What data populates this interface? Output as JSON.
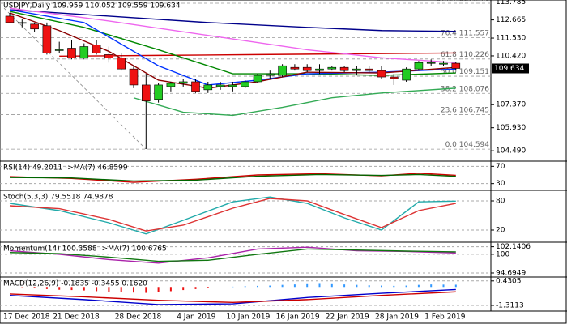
{
  "chart_data": [
    {
      "type": "candlestick",
      "title": "USDJPY,Daily  109.959 110.052 109.559 109.634",
      "categories": [
        "17 Dec 2018",
        null,
        null,
        null,
        "21 Dec 2018",
        null,
        null,
        null,
        null,
        "28 Dec 2018",
        null,
        null,
        null,
        null,
        "4 Jan 2019",
        null,
        null,
        null,
        "10 Jan 2019",
        null,
        null,
        null,
        "16 Jan 2019",
        null,
        null,
        null,
        "22 Jan 2019",
        null,
        null,
        null,
        "28 Jan 2019",
        null,
        null,
        null,
        "1 Feb 2019",
        null,
        null
      ],
      "open": [
        112.9,
        112.5,
        112.4,
        112.3,
        110.8,
        110.9,
        110.3,
        111.1,
        110.5,
        110.3,
        109.6,
        108.6,
        107.7,
        108.5,
        108.7,
        108.8,
        108.3,
        108.5,
        108.5,
        108.5,
        108.8,
        109.2,
        109.2,
        109.7,
        109.7,
        109.5,
        109.6,
        109.7,
        109.5,
        109.6,
        109.5,
        109.1,
        108.9,
        109.6,
        110.0,
        109.9,
        109.959
      ],
      "high": [
        113.1,
        112.7,
        112.5,
        112.5,
        111.3,
        111.4,
        111.2,
        111.4,
        111.0,
        110.6,
        109.8,
        109.3,
        108.7,
        108.8,
        109.0,
        109.0,
        108.8,
        108.8,
        108.8,
        108.9,
        109.3,
        109.5,
        109.9,
        109.9,
        109.9,
        109.9,
        109.8,
        109.8,
        109.8,
        109.8,
        109.8,
        109.3,
        109.7,
        110.1,
        110.2,
        110.1,
        110.052
      ],
      "low": [
        112.5,
        112.2,
        111.9,
        110.5,
        110.6,
        110.2,
        110.2,
        110.5,
        110.0,
        109.5,
        108.4,
        104.6,
        107.5,
        108.2,
        108.5,
        108.1,
        108.1,
        108.3,
        108.2,
        108.4,
        108.7,
        109.0,
        109.1,
        109.5,
        109.4,
        109.3,
        109.5,
        109.4,
        109.2,
        109.4,
        109.0,
        108.6,
        108.8,
        109.5,
        109.8,
        109.8,
        109.559
      ],
      "close": [
        112.5,
        112.5,
        112.1,
        110.6,
        110.8,
        110.3,
        111.0,
        110.6,
        110.3,
        109.6,
        108.6,
        107.6,
        108.6,
        108.7,
        108.8,
        108.2,
        108.6,
        108.6,
        108.6,
        108.8,
        109.2,
        109.3,
        109.8,
        109.6,
        109.5,
        109.6,
        109.7,
        109.5,
        109.6,
        109.5,
        109.1,
        109.0,
        109.6,
        110.0,
        110.0,
        109.96,
        109.634
      ],
      "up_color": "#22cc22",
      "down_color": "#ee1111",
      "ylim": [
        103.89,
        113.91
      ],
      "yticks": [
        113.785,
        112.665,
        {
          "value": 111.53,
          "label": "111.530"
        },
        {
          "value": 110.42,
          "label": "110.420"
        },
        {
          "value": 107.37,
          "label": "107.370"
        },
        {
          "value": 105.93,
          "label": "105.930"
        },
        {
          "value": 104.49,
          "label": "104.490"
        }
      ],
      "fib": [
        {
          "level": "100.0",
          "price": 113.708
        },
        {
          "level": "76.4",
          "price": 111.557
        },
        {
          "level": "61.8",
          "price": 110.226
        },
        {
          "level": "50.0",
          "price": 109.151
        },
        {
          "level": "38.2",
          "price": 108.076
        },
        {
          "level": "23.6",
          "price": 106.745
        },
        {
          "level": "0.0",
          "price": 104.594
        }
      ],
      "overlays": [
        {
          "color": "#00008b",
          "x": [
            0,
            8,
            16,
            24,
            30,
            36
          ],
          "values": [
            113.3,
            112.9,
            112.5,
            112.2,
            112.0,
            111.95
          ]
        },
        {
          "color": "#cc0000",
          "x": [
            4,
            12,
            20,
            28,
            36
          ],
          "values": [
            110.4,
            110.45,
            110.5,
            110.55,
            110.6
          ]
        },
        {
          "color": "#ee66ee",
          "x": [
            0,
            8,
            16,
            24,
            30,
            36
          ],
          "values": [
            113.4,
            112.6,
            111.7,
            110.8,
            110.3,
            110.0
          ]
        },
        {
          "color": "#008800",
          "x": [
            0,
            6,
            12,
            18,
            24,
            30,
            36
          ],
          "values": [
            113.2,
            112.2,
            110.8,
            109.3,
            109.3,
            109.2,
            109.35
          ]
        },
        {
          "color": "#0033ff",
          "x": [
            0,
            6,
            12,
            16,
            20,
            24,
            30,
            36
          ],
          "values": [
            113.3,
            112.5,
            109.8,
            108.6,
            108.9,
            109.3,
            109.4,
            109.6
          ]
        },
        {
          "color": "#8b0000",
          "x": [
            0,
            4,
            8,
            12,
            16,
            20,
            24,
            30,
            36
          ],
          "values": [
            113.1,
            112.0,
            110.7,
            108.9,
            108.4,
            108.8,
            109.4,
            109.35,
            109.7
          ]
        },
        {
          "color": "#33aa55",
          "x": [
            10,
            14,
            18,
            22,
            26,
            30,
            36
          ],
          "values": [
            107.8,
            106.9,
            106.7,
            107.2,
            107.8,
            108.1,
            108.4
          ]
        }
      ]
    },
    {
      "type": "line",
      "title": "RSI(14) 49.2011 ->MA(7) 46.8599",
      "ylim": [
        20,
        80
      ],
      "yticks": [
        70,
        30
      ],
      "series": [
        {
          "color": "#cc0000",
          "x": [
            0,
            5,
            10,
            15,
            20,
            25,
            30,
            33,
            36
          ],
          "values": [
            46,
            42,
            33,
            40,
            50,
            53,
            48,
            54,
            49.2011
          ]
        },
        {
          "color": "#006600",
          "x": [
            0,
            5,
            10,
            15,
            20,
            25,
            30,
            33,
            36
          ],
          "values": [
            44,
            43,
            36,
            38,
            47,
            51,
            49,
            51,
            46.8599
          ]
        }
      ]
    },
    {
      "type": "line",
      "title": "Stoch(5,3,3) 79.5518 74.9878",
      "ylim": [
        0,
        100
      ],
      "yticks": [
        80,
        20
      ],
      "series": [
        {
          "color": "#22aaaa",
          "x": [
            0,
            4,
            8,
            11,
            14,
            18,
            21,
            24,
            27,
            30,
            33,
            36
          ],
          "values": [
            75,
            60,
            35,
            12,
            40,
            78,
            88,
            75,
            45,
            20,
            78,
            79.5518
          ]
        },
        {
          "color": "#dd3333",
          "x": [
            0,
            4,
            8,
            11,
            14,
            18,
            21,
            24,
            27,
            30,
            33,
            36
          ],
          "values": [
            70,
            64,
            42,
            18,
            30,
            65,
            85,
            80,
            52,
            25,
            60,
            74.9878
          ]
        }
      ]
    },
    {
      "type": "line",
      "title": "Momentum(14) 100.3588 ->MA(7) 100.6765",
      "ylim": [
        94,
        103.2
      ],
      "yticks": [
        {
          "value": 102.1406,
          "label": "102.1406"
        },
        100,
        {
          "value": 94.6949,
          "label": "94.6949"
        }
      ],
      "series": [
        {
          "color": "#aa22aa",
          "x": [
            0,
            4,
            8,
            12,
            16,
            20,
            24,
            28,
            32,
            36
          ],
          "values": [
            101,
            100,
            98.5,
            97.5,
            99,
            101.5,
            102,
            101,
            100.8,
            100.3588
          ]
        },
        {
          "color": "#117711",
          "x": [
            0,
            4,
            8,
            12,
            16,
            20,
            24,
            28,
            32,
            36
          ],
          "values": [
            100.5,
            100.2,
            99.2,
            98,
            98.3,
            100,
            101.5,
            101.2,
            100.9,
            100.6765
          ]
        }
      ]
    },
    {
      "type": "macd",
      "title": "MACD(12,26,9) -0.1835 -0.3455 0.1620",
      "ylim": [
        -1.6,
        0.65
      ],
      "yticks": [
        {
          "value": 0.4305,
          "label": "0.4305"
        },
        {
          "value": -1.3113,
          "label": "-1.3113"
        }
      ],
      "histogram": [
        0,
        -0.02,
        -0.05,
        -0.15,
        -0.2,
        -0.22,
        -0.25,
        -0.3,
        -0.35,
        -0.38,
        -0.4,
        -0.42,
        -0.35,
        -0.3,
        -0.22,
        -0.15,
        -0.05,
        0,
        0.02,
        0.05,
        0.08,
        0.1,
        0.15,
        0.18,
        0.2,
        0.22,
        0.2,
        0.18,
        0.15,
        0.12,
        0.1,
        0.08,
        0.1,
        0.15,
        0.18,
        0.17,
        0.162
      ],
      "up_color": "#3399ff",
      "down_color": "#ee1111",
      "series": [
        {
          "color": "#0000cc",
          "x": [
            0,
            6,
            12,
            18,
            24,
            30,
            36
          ],
          "values": [
            -0.6,
            -0.9,
            -1.25,
            -1.2,
            -0.75,
            -0.45,
            -0.1835
          ]
        },
        {
          "color": "#cc0000",
          "x": [
            0,
            6,
            12,
            18,
            24,
            30,
            36
          ],
          "values": [
            -0.5,
            -0.7,
            -0.95,
            -1.1,
            -0.9,
            -0.6,
            -0.3455
          ]
        }
      ]
    }
  ]
}
